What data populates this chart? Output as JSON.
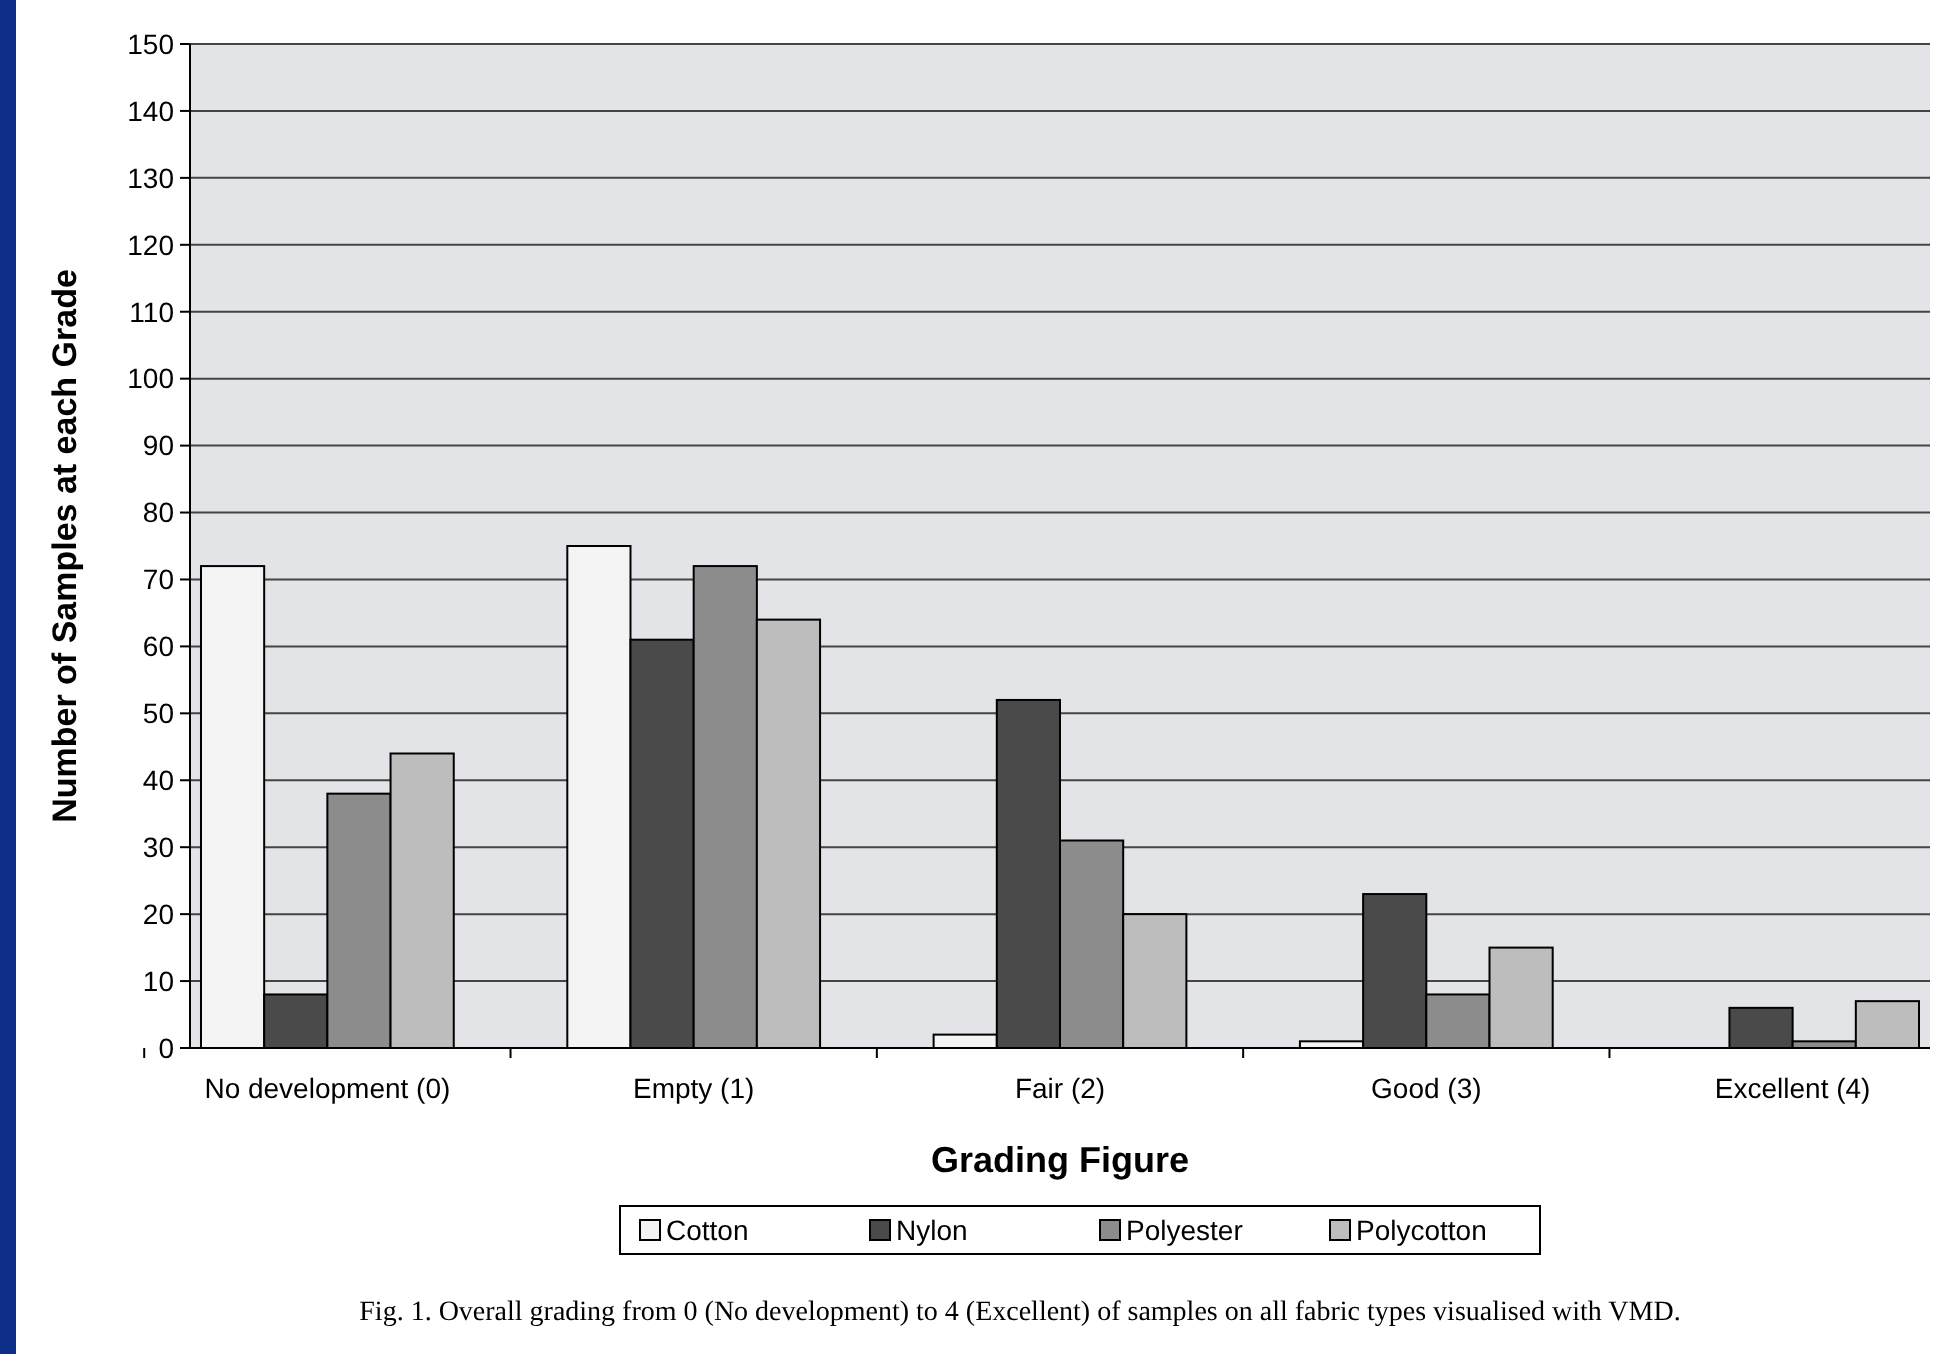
{
  "chart_data": {
    "type": "bar",
    "categories": [
      "No development (0)",
      "Empty (1)",
      "Fair (2)",
      "Good (3)",
      "Excellent (4)"
    ],
    "series": [
      {
        "name": "Cotton",
        "color": "#f4f4f4",
        "values": [
          72,
          75,
          2,
          1,
          0
        ]
      },
      {
        "name": "Nylon",
        "color": "#4a4a4a",
        "values": [
          8,
          61,
          52,
          23,
          6
        ]
      },
      {
        "name": "Polyester",
        "color": "#8c8c8c",
        "values": [
          38,
          72,
          31,
          8,
          1
        ]
      },
      {
        "name": "Polycotton",
        "color": "#bdbdbd",
        "values": [
          44,
          64,
          20,
          15,
          7
        ]
      }
    ],
    "xlabel": "Grading Figure",
    "ylabel": "Number of Samples at each Grade",
    "ylim": [
      0,
      150
    ],
    "yticks": [
      0,
      10,
      20,
      30,
      40,
      50,
      60,
      70,
      80,
      90,
      100,
      110,
      120,
      130,
      140,
      150
    ],
    "grid": "y",
    "legend": "bottom",
    "annotations": [
      "Fig. 1. Overall grading from 0 (No development) to 4 (Excellent) of samples on all fabric types visualised with VMD."
    ]
  }
}
